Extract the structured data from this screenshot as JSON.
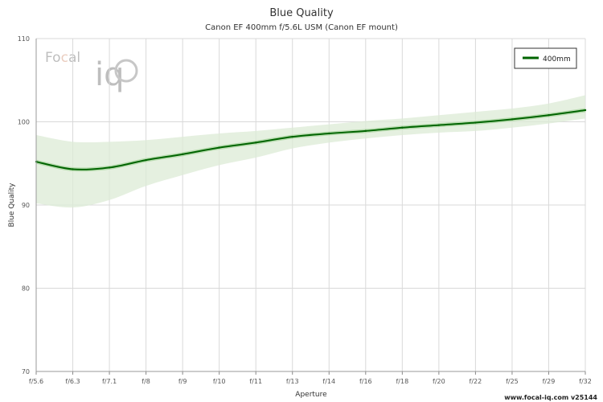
{
  "chart_data": {
    "type": "line",
    "title": "Blue Quality",
    "subtitle": "Canon EF 400mm f/5.6L USM (Canon EF mount)",
    "xlabel": "Aperture",
    "ylabel": "Blue Quality",
    "ylim": [
      70,
      110
    ],
    "yticks": [
      70,
      80,
      90,
      100,
      110
    ],
    "categories": [
      "f/5.6",
      "f/6.3",
      "f/7.1",
      "f/8",
      "f/9",
      "f/10",
      "f/11",
      "f/13",
      "f/14",
      "f/16",
      "f/18",
      "f/20",
      "f/22",
      "f/25",
      "f/29",
      "f/32"
    ],
    "grid": true,
    "legend_position": "top-right",
    "series": [
      {
        "name": "400mm",
        "color": "#006400",
        "band_color": "#dcebd6",
        "values": [
          95.2,
          94.3,
          94.5,
          95.4,
          96.1,
          96.9,
          97.5,
          98.2,
          98.6,
          98.9,
          99.3,
          99.6,
          99.9,
          100.3,
          100.8,
          101.4
        ],
        "upper": [
          98.4,
          97.6,
          97.6,
          97.8,
          98.2,
          98.6,
          98.9,
          99.3,
          99.7,
          100.1,
          100.4,
          100.8,
          101.2,
          101.6,
          102.2,
          103.2
        ],
        "lower": [
          90.2,
          89.7,
          90.6,
          92.3,
          93.6,
          94.8,
          95.7,
          96.8,
          97.5,
          98.0,
          98.4,
          98.7,
          98.9,
          99.3,
          99.8,
          100.4
        ]
      }
    ]
  },
  "logo": {
    "text_fo": "Fo",
    "text_c": "c",
    "text_al": "al",
    "text_iq": "iq"
  },
  "footer": "www.focal-iq.com  v25144"
}
